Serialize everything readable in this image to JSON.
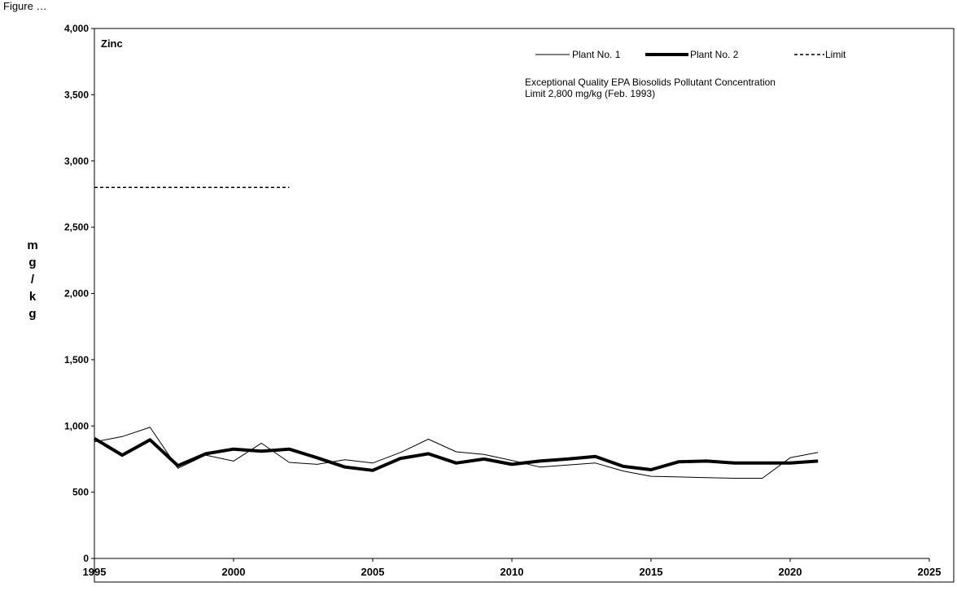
{
  "chart_data": {
    "type": "line",
    "title": "Zinc",
    "top_text": "Figure … ",
    "ylabel": "mg/kg",
    "ylabel_letters": [
      "m",
      "g",
      "/",
      "k",
      "g"
    ],
    "xlabel": "",
    "xlim": [
      1995,
      2025
    ],
    "ylim": [
      0,
      4000
    ],
    "x_ticks": [
      "1995",
      "2000",
      "2005",
      "2010",
      "2015",
      "2020",
      "2025"
    ],
    "y_ticks": [
      "0",
      "500",
      "1,000",
      "1,500",
      "2,000",
      "2,500",
      "3,000",
      "3,500",
      "4,000"
    ],
    "annotation_lines": [
      "Exceptional Quality EPA Biosolids Pollutant Concentration",
      "Limit 2,800 mg/kg (Feb. 1993)"
    ],
    "legend": {
      "placement": "top-right"
    },
    "series": [
      {
        "name": "Plant No. 1",
        "style": "thin",
        "x": [
          1995,
          1996,
          1997,
          1998,
          1999,
          2000,
          2001,
          2002,
          2003,
          2004,
          2005,
          2006,
          2007,
          2008,
          2009,
          2010,
          2011,
          2012,
          2013,
          2014,
          2015,
          2016,
          2017,
          2018,
          2019,
          2020,
          2021
        ],
        "values": [
          880,
          920,
          990,
          680,
          780,
          735,
          870,
          725,
          710,
          745,
          720,
          800,
          900,
          805,
          785,
          740,
          690,
          705,
          720,
          660,
          620,
          615,
          610,
          605,
          605,
          760,
          800
        ]
      },
      {
        "name": "Plant No. 2",
        "style": "thick",
        "x": [
          1995,
          1996,
          1997,
          1998,
          1999,
          2000,
          2001,
          2002,
          2003,
          2004,
          2005,
          2006,
          2007,
          2008,
          2009,
          2010,
          2011,
          2012,
          2013,
          2014,
          2015,
          2016,
          2017,
          2018,
          2019,
          2020,
          2021
        ],
        "values": [
          905,
          780,
          895,
          700,
          790,
          825,
          810,
          825,
          760,
          690,
          665,
          755,
          790,
          720,
          750,
          710,
          735,
          750,
          770,
          695,
          670,
          730,
          735,
          720,
          720,
          720,
          735
        ]
      },
      {
        "name": "Limit",
        "style": "dashed",
        "x": [
          1995,
          2002
        ],
        "values": [
          2800,
          2800
        ]
      }
    ],
    "colors": {
      "line": "#000000",
      "background": "#ffffff"
    }
  }
}
